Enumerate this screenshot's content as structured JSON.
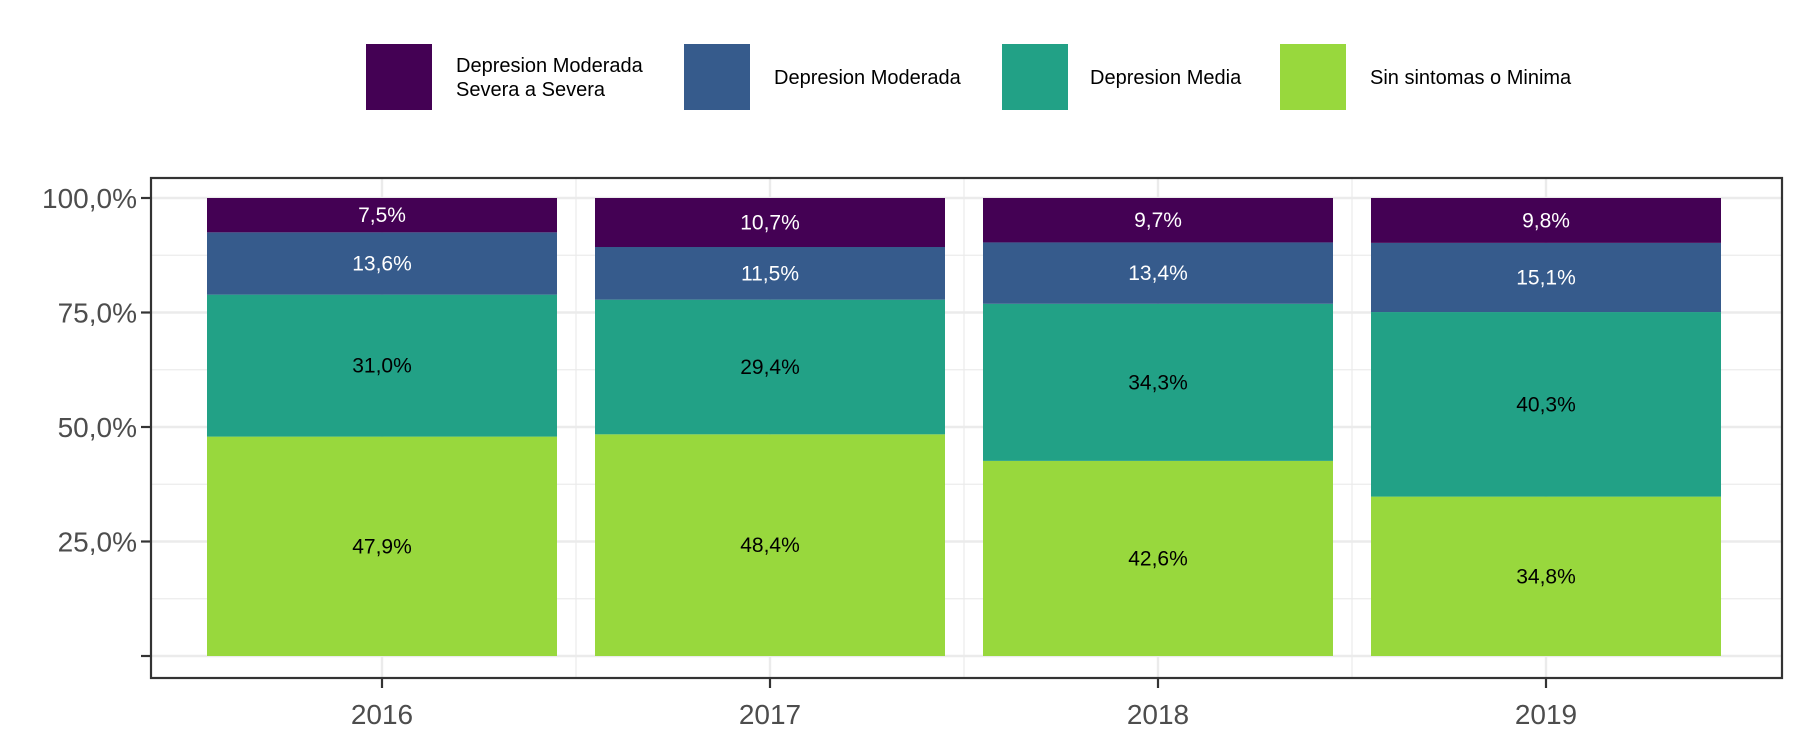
{
  "chart_data": {
    "type": "bar",
    "stacked": true,
    "categories": [
      "2016",
      "2017",
      "2018",
      "2019"
    ],
    "series": [
      {
        "name": "Sin sintomas o Minima",
        "color": "#98d83d",
        "label_color": "#000000",
        "values": [
          47.9,
          48.4,
          42.6,
          34.8
        ],
        "labels": [
          "47,9%",
          "48,4%",
          "42,6%",
          "34,8%"
        ]
      },
      {
        "name": "Depresion Media",
        "color": "#22a186",
        "label_color": "#000000",
        "values": [
          31.0,
          29.4,
          34.3,
          40.3
        ],
        "labels": [
          "31,0%",
          "29,4%",
          "34,3%",
          "40,3%"
        ]
      },
      {
        "name": "Depresion Moderada",
        "color": "#365b8c",
        "label_color": "#ffffff",
        "values": [
          13.6,
          11.5,
          13.4,
          15.1
        ],
        "labels": [
          "13,6%",
          "11,5%",
          "13,4%",
          "15,1%"
        ]
      },
      {
        "name": "Depresion Moderada Severa a Severa",
        "color": "#440154",
        "label_color": "#ffffff",
        "values": [
          7.5,
          10.7,
          9.7,
          9.8
        ],
        "labels": [
          "7,5%",
          "10,7%",
          "9,7%",
          "9,8%"
        ]
      }
    ],
    "legend": [
      {
        "lines": [
          "Depresion Moderada",
          "Severa a Severa"
        ],
        "color": "#440154"
      },
      {
        "lines": [
          "Depresion Moderada"
        ],
        "color": "#365b8c"
      },
      {
        "lines": [
          "Depresion Media"
        ],
        "color": "#22a186"
      },
      {
        "lines": [
          "Sin sintomas o Minima"
        ],
        "color": "#98d83d"
      }
    ],
    "legend_position": "top",
    "y_ticks": [
      {
        "value": 0,
        "label": ""
      },
      {
        "value": 25,
        "label": "25,0%"
      },
      {
        "value": 50,
        "label": "50,0%"
      },
      {
        "value": 75,
        "label": "75,0%"
      },
      {
        "value": 100,
        "label": "100,0%"
      }
    ],
    "ylim": [
      0,
      100
    ],
    "title": "",
    "xlabel": "",
    "ylabel": "",
    "grid": true
  }
}
